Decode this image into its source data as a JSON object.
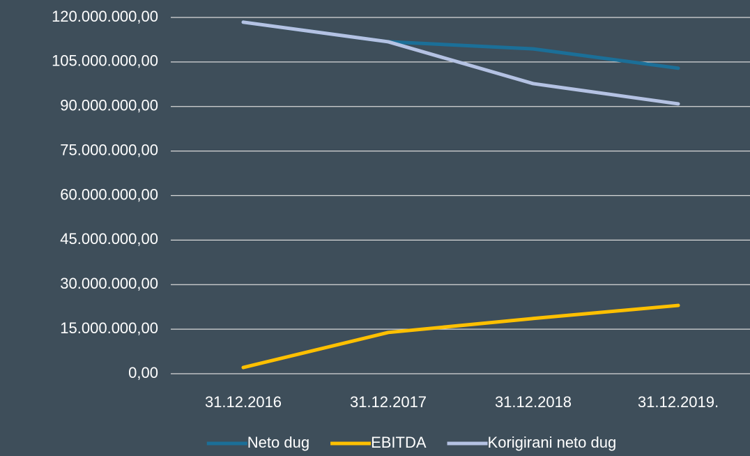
{
  "chart_data": {
    "type": "line",
    "categories": [
      "31.12.2016",
      "31.12.2017",
      "31.12.2018",
      "31.12.2019."
    ],
    "series": [
      {
        "name": "Neto dug",
        "color": "#1b6f98",
        "values": [
          118400000,
          111800000,
          109400000,
          102900000
        ]
      },
      {
        "name": "EBITDA",
        "color": "#ffc000",
        "values": [
          2100000,
          13900000,
          18600000,
          23000000
        ]
      },
      {
        "name": "Korigirani neto dug",
        "color": "#b4c2e3",
        "values": [
          118400000,
          111800000,
          97700000,
          90900000
        ]
      }
    ],
    "ylim": [
      0,
      120000000
    ],
    "yticks": [
      {
        "value": 0,
        "label": "0,00"
      },
      {
        "value": 15000000,
        "label": "15.000.000,00"
      },
      {
        "value": 30000000,
        "label": "30.000.000,00"
      },
      {
        "value": 45000000,
        "label": "45.000.000,00"
      },
      {
        "value": 60000000,
        "label": "60.000.000,00"
      },
      {
        "value": 75000000,
        "label": "75.000.000,00"
      },
      {
        "value": 90000000,
        "label": "90.000.000,00"
      },
      {
        "value": 105000000,
        "label": "105.000.000,00"
      },
      {
        "value": 120000000,
        "label": "120.000.000,00"
      }
    ],
    "grid": true,
    "legend": "bottom"
  }
}
